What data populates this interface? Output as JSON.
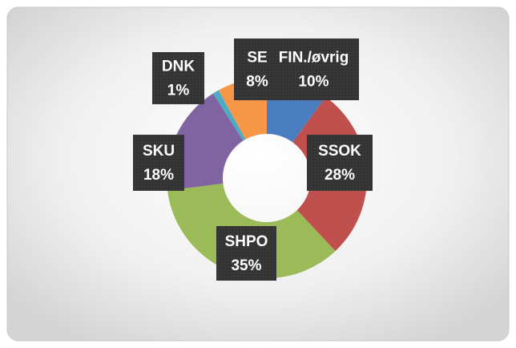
{
  "chart_data": {
    "type": "donut",
    "categories": [
      "FIN./øvrig",
      "SSOK",
      "SHPO",
      "SKU",
      "DNK",
      "SE"
    ],
    "values": [
      10,
      28,
      35,
      18,
      1,
      8
    ],
    "value_labels": [
      "10%",
      "28%",
      "35%",
      "18%",
      "1%",
      "8%"
    ],
    "colors": [
      "#4a7cc0",
      "#c0504d",
      "#9bbb59",
      "#8064a2",
      "#4bacc6",
      "#f79646"
    ]
  }
}
